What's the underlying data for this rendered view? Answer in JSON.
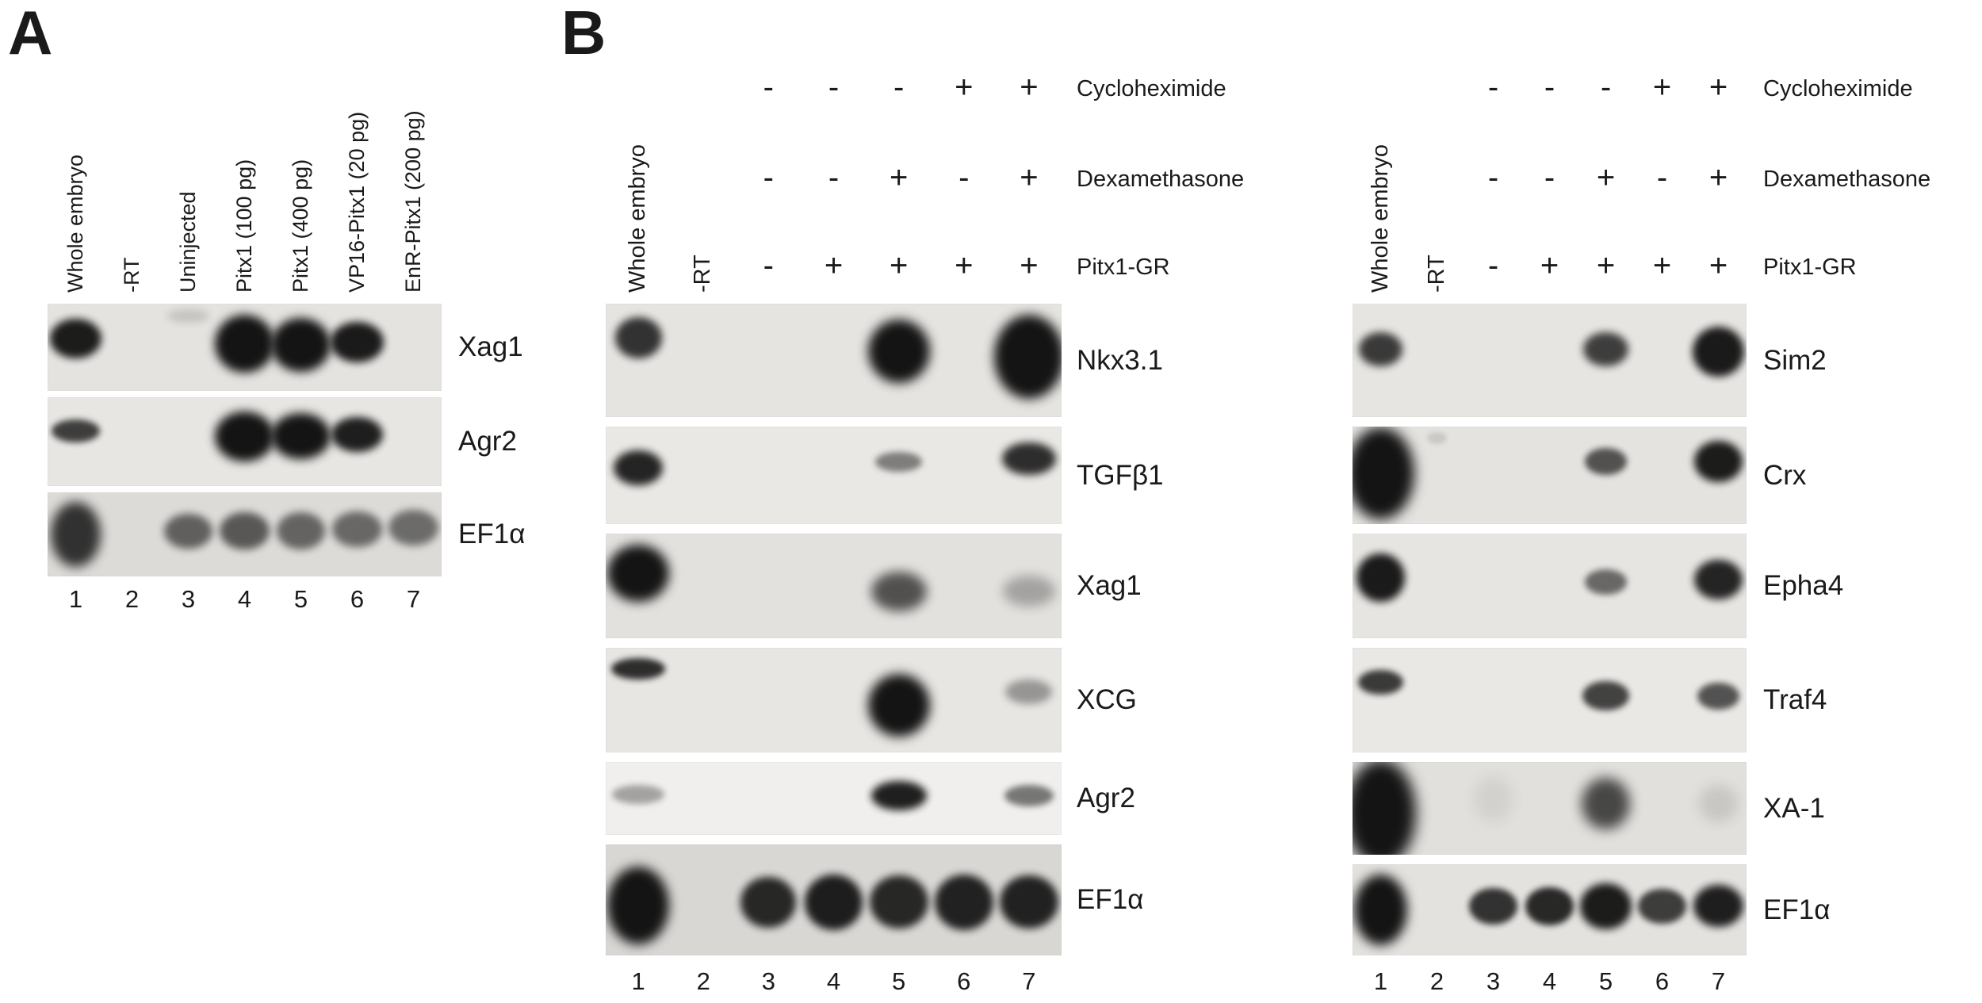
{
  "figure": {
    "background": "#ffffff",
    "band_color": "#141414",
    "panels": [
      {
        "id": "A",
        "panel_letter": "A",
        "lane_labels": [
          "Whole embryo",
          "-RT",
          "Uninjected",
          "Pitx1 (100 pg)",
          "Pitx1 (400 pg)",
          "VP16-Pitx1 (20 pg)",
          "EnR-Pitx1 (200 pg)"
        ],
        "lane_numbers": [
          "1",
          "2",
          "3",
          "4",
          "5",
          "6",
          "7"
        ],
        "strips": [
          {
            "gene": "Xag1",
            "bg": "#e5e3e0",
            "bands": [
              {
                "lane": 1,
                "w": 0.92,
                "h": 0.46,
                "y": 0.4,
                "o": 0.96,
                "blur": 5
              },
              {
                "lane": 3,
                "w": 0.75,
                "h": 0.16,
                "y": 0.14,
                "o": 0.15,
                "blur": 5
              },
              {
                "lane": 4,
                "w": 1.06,
                "h": 0.66,
                "y": 0.46,
                "o": 1,
                "blur": 6
              },
              {
                "lane": 5,
                "w": 1.06,
                "h": 0.62,
                "y": 0.47,
                "o": 1,
                "blur": 6
              },
              {
                "lane": 6,
                "w": 0.95,
                "h": 0.46,
                "y": 0.44,
                "o": 0.97,
                "blur": 5
              }
            ]
          },
          {
            "gene": "Agr2",
            "bg": "#e8e6e3",
            "bands": [
              {
                "lane": 1,
                "w": 0.85,
                "h": 0.26,
                "y": 0.38,
                "o": 0.8,
                "blur": 4
              },
              {
                "lane": 4,
                "w": 1.05,
                "h": 0.56,
                "y": 0.44,
                "o": 1,
                "blur": 6
              },
              {
                "lane": 5,
                "w": 1.05,
                "h": 0.52,
                "y": 0.44,
                "o": 1,
                "blur": 6
              },
              {
                "lane": 6,
                "w": 0.92,
                "h": 0.4,
                "y": 0.42,
                "o": 0.95,
                "blur": 5
              }
            ]
          },
          {
            "gene": "EF1α",
            "bg": "#dddbd8",
            "bands": [
              {
                "lane": 1,
                "w": 0.9,
                "h": 0.78,
                "y": 0.5,
                "o": 0.85,
                "blur": 7
              },
              {
                "lane": 3,
                "w": 0.85,
                "h": 0.42,
                "y": 0.46,
                "o": 0.62,
                "blur": 5
              },
              {
                "lane": 4,
                "w": 0.88,
                "h": 0.44,
                "y": 0.46,
                "o": 0.66,
                "blur": 5
              },
              {
                "lane": 5,
                "w": 0.86,
                "h": 0.44,
                "y": 0.46,
                "o": 0.6,
                "blur": 5
              },
              {
                "lane": 6,
                "w": 0.88,
                "h": 0.42,
                "y": 0.44,
                "o": 0.58,
                "blur": 5
              },
              {
                "lane": 7,
                "w": 0.88,
                "h": 0.42,
                "y": 0.42,
                "o": 0.56,
                "blur": 5
              }
            ]
          }
        ]
      },
      {
        "id": "B-left",
        "panel_letter": "B",
        "lane_labels": [
          "Whole embryo",
          "-RT"
        ],
        "treatment_rows": [
          {
            "label": "Cycloheximide",
            "signs": [
              "-",
              "-",
              "-",
              "+",
              "+"
            ]
          },
          {
            "label": "Dexamethasone",
            "signs": [
              "-",
              "-",
              "+",
              "-",
              "+"
            ]
          },
          {
            "label": "Pitx1-GR",
            "signs": [
              "-",
              "+",
              "+",
              "+",
              "+"
            ]
          }
        ],
        "lane_numbers": [
          "1",
          "2",
          "3",
          "4",
          "5",
          "6",
          "7"
        ],
        "strips": [
          {
            "gene": "Nkx3.1",
            "bg": "#e6e4e1",
            "bands": [
              {
                "lane": 1,
                "w": 0.72,
                "h": 0.36,
                "y": 0.3,
                "o": 0.85,
                "blur": 5
              },
              {
                "lane": 5,
                "w": 0.95,
                "h": 0.56,
                "y": 0.42,
                "o": 1,
                "blur": 7
              },
              {
                "lane": 7,
                "w": 1.08,
                "h": 0.74,
                "y": 0.47,
                "o": 1,
                "blur": 7
              }
            ]
          },
          {
            "gene": "TGFβ1",
            "bg": "#eae8e5",
            "bands": [
              {
                "lane": 1,
                "w": 0.75,
                "h": 0.36,
                "y": 0.42,
                "o": 0.92,
                "blur": 5
              },
              {
                "lane": 5,
                "w": 0.72,
                "h": 0.2,
                "y": 0.36,
                "o": 0.5,
                "blur": 4
              },
              {
                "lane": 7,
                "w": 0.82,
                "h": 0.34,
                "y": 0.33,
                "o": 0.88,
                "blur": 5
              }
            ]
          },
          {
            "gene": "Xag1",
            "bg": "#e3e1de",
            "bands": [
              {
                "lane": 1,
                "w": 0.95,
                "h": 0.55,
                "y": 0.38,
                "o": 1,
                "blur": 7
              },
              {
                "lane": 5,
                "w": 0.85,
                "h": 0.38,
                "y": 0.55,
                "o": 0.7,
                "blur": 7
              },
              {
                "lane": 7,
                "w": 0.8,
                "h": 0.3,
                "y": 0.55,
                "o": 0.3,
                "blur": 7
              }
            ]
          },
          {
            "gene": "XCG",
            "bg": "#e8e6e3",
            "bands": [
              {
                "lane": 1,
                "w": 0.82,
                "h": 0.2,
                "y": 0.2,
                "o": 0.88,
                "blur": 4
              },
              {
                "lane": 5,
                "w": 0.95,
                "h": 0.6,
                "y": 0.55,
                "o": 1,
                "blur": 7
              },
              {
                "lane": 7,
                "w": 0.72,
                "h": 0.24,
                "y": 0.42,
                "o": 0.38,
                "blur": 5
              }
            ]
          },
          {
            "gene": "Agr2",
            "bg": "#f0efed",
            "bands": [
              {
                "lane": 1,
                "w": 0.8,
                "h": 0.26,
                "y": 0.45,
                "o": 0.35,
                "blur": 4
              },
              {
                "lane": 5,
                "w": 0.85,
                "h": 0.4,
                "y": 0.46,
                "o": 0.95,
                "blur": 5
              },
              {
                "lane": 7,
                "w": 0.75,
                "h": 0.3,
                "y": 0.46,
                "o": 0.55,
                "blur": 4
              }
            ]
          },
          {
            "gene": "EF1α",
            "bg": "#d9d7d4",
            "bands": [
              {
                "lane": 1,
                "w": 0.95,
                "h": 0.7,
                "y": 0.55,
                "o": 1,
                "blur": 7
              },
              {
                "lane": 3,
                "w": 0.85,
                "h": 0.46,
                "y": 0.52,
                "o": 0.9,
                "blur": 5
              },
              {
                "lane": 4,
                "w": 0.9,
                "h": 0.5,
                "y": 0.52,
                "o": 0.95,
                "blur": 5
              },
              {
                "lane": 5,
                "w": 0.9,
                "h": 0.48,
                "y": 0.52,
                "o": 0.9,
                "blur": 5
              },
              {
                "lane": 6,
                "w": 0.9,
                "h": 0.5,
                "y": 0.52,
                "o": 0.93,
                "blur": 5
              },
              {
                "lane": 7,
                "w": 0.9,
                "h": 0.48,
                "y": 0.52,
                "o": 0.93,
                "blur": 5
              }
            ]
          }
        ]
      },
      {
        "id": "B-right",
        "lane_labels": [
          "Whole embryo",
          "-RT"
        ],
        "treatment_rows": [
          {
            "label": "Cycloheximide",
            "signs": [
              "-",
              "-",
              "-",
              "+",
              "+"
            ]
          },
          {
            "label": "Dexamethasone",
            "signs": [
              "-",
              "-",
              "+",
              "-",
              "+"
            ]
          },
          {
            "label": "Pitx1-GR",
            "signs": [
              "-",
              "+",
              "+",
              "+",
              "+"
            ]
          }
        ],
        "lane_numbers": [
          "1",
          "2",
          "3",
          "4",
          "5",
          "6",
          "7"
        ],
        "strips": [
          {
            "gene": "Sim2",
            "bg": "#e7e5e2",
            "bands": [
              {
                "lane": 1,
                "w": 0.78,
                "h": 0.3,
                "y": 0.4,
                "o": 0.82,
                "blur": 5
              },
              {
                "lane": 5,
                "w": 0.8,
                "h": 0.3,
                "y": 0.4,
                "o": 0.8,
                "blur": 5
              },
              {
                "lane": 7,
                "w": 0.92,
                "h": 0.44,
                "y": 0.42,
                "o": 0.97,
                "blur": 5
              }
            ]
          },
          {
            "gene": "Crx",
            "bg": "#e5e3e0",
            "bands": [
              {
                "lane": 1,
                "w": 1.2,
                "h": 0.95,
                "y": 0.48,
                "o": 1,
                "blur": 8
              },
              {
                "lane": 2,
                "w": 0.35,
                "h": 0.12,
                "y": 0.12,
                "o": 0.12,
                "blur": 3
              },
              {
                "lane": 5,
                "w": 0.75,
                "h": 0.28,
                "y": 0.36,
                "o": 0.7,
                "blur": 4
              },
              {
                "lane": 7,
                "w": 0.85,
                "h": 0.42,
                "y": 0.36,
                "o": 0.96,
                "blur": 5
              }
            ]
          },
          {
            "gene": "Epha4",
            "bg": "#e7e5e2",
            "bands": [
              {
                "lane": 1,
                "w": 0.85,
                "h": 0.46,
                "y": 0.42,
                "o": 0.97,
                "blur": 5
              },
              {
                "lane": 5,
                "w": 0.75,
                "h": 0.24,
                "y": 0.46,
                "o": 0.6,
                "blur": 4
              },
              {
                "lane": 7,
                "w": 0.85,
                "h": 0.38,
                "y": 0.44,
                "o": 0.92,
                "blur": 5
              }
            ]
          },
          {
            "gene": "Traf4",
            "bg": "#eae8e5",
            "bands": [
              {
                "lane": 1,
                "w": 0.8,
                "h": 0.24,
                "y": 0.33,
                "o": 0.82,
                "blur": 4
              },
              {
                "lane": 5,
                "w": 0.82,
                "h": 0.28,
                "y": 0.46,
                "o": 0.78,
                "blur": 4
              },
              {
                "lane": 7,
                "w": 0.75,
                "h": 0.26,
                "y": 0.46,
                "o": 0.7,
                "blur": 4
              }
            ]
          },
          {
            "gene": "XA-1",
            "bg": "#e2e0dd",
            "bands": [
              {
                "lane": 1,
                "w": 1.25,
                "h": 1.15,
                "y": 0.55,
                "o": 1,
                "blur": 9
              },
              {
                "lane": 3,
                "w": 0.7,
                "h": 0.5,
                "y": 0.4,
                "o": 0.07,
                "blur": 9
              },
              {
                "lane": 5,
                "w": 0.85,
                "h": 0.55,
                "y": 0.45,
                "o": 0.75,
                "blur": 8
              },
              {
                "lane": 7,
                "w": 0.7,
                "h": 0.4,
                "y": 0.45,
                "o": 0.12,
                "blur": 8
              }
            ]
          },
          {
            "gene": "EF1α",
            "bg": "#e4e2df",
            "bands": [
              {
                "lane": 1,
                "w": 0.95,
                "h": 0.78,
                "y": 0.5,
                "o": 1,
                "blur": 7
              },
              {
                "lane": 3,
                "w": 0.85,
                "h": 0.4,
                "y": 0.46,
                "o": 0.85,
                "blur": 4
              },
              {
                "lane": 4,
                "w": 0.85,
                "h": 0.42,
                "y": 0.46,
                "o": 0.9,
                "blur": 4
              },
              {
                "lane": 5,
                "w": 0.92,
                "h": 0.5,
                "y": 0.46,
                "o": 0.96,
                "blur": 5
              },
              {
                "lane": 6,
                "w": 0.85,
                "h": 0.38,
                "y": 0.46,
                "o": 0.8,
                "blur": 4
              },
              {
                "lane": 7,
                "w": 0.88,
                "h": 0.46,
                "y": 0.46,
                "o": 0.95,
                "blur": 5
              }
            ]
          }
        ]
      }
    ]
  }
}
